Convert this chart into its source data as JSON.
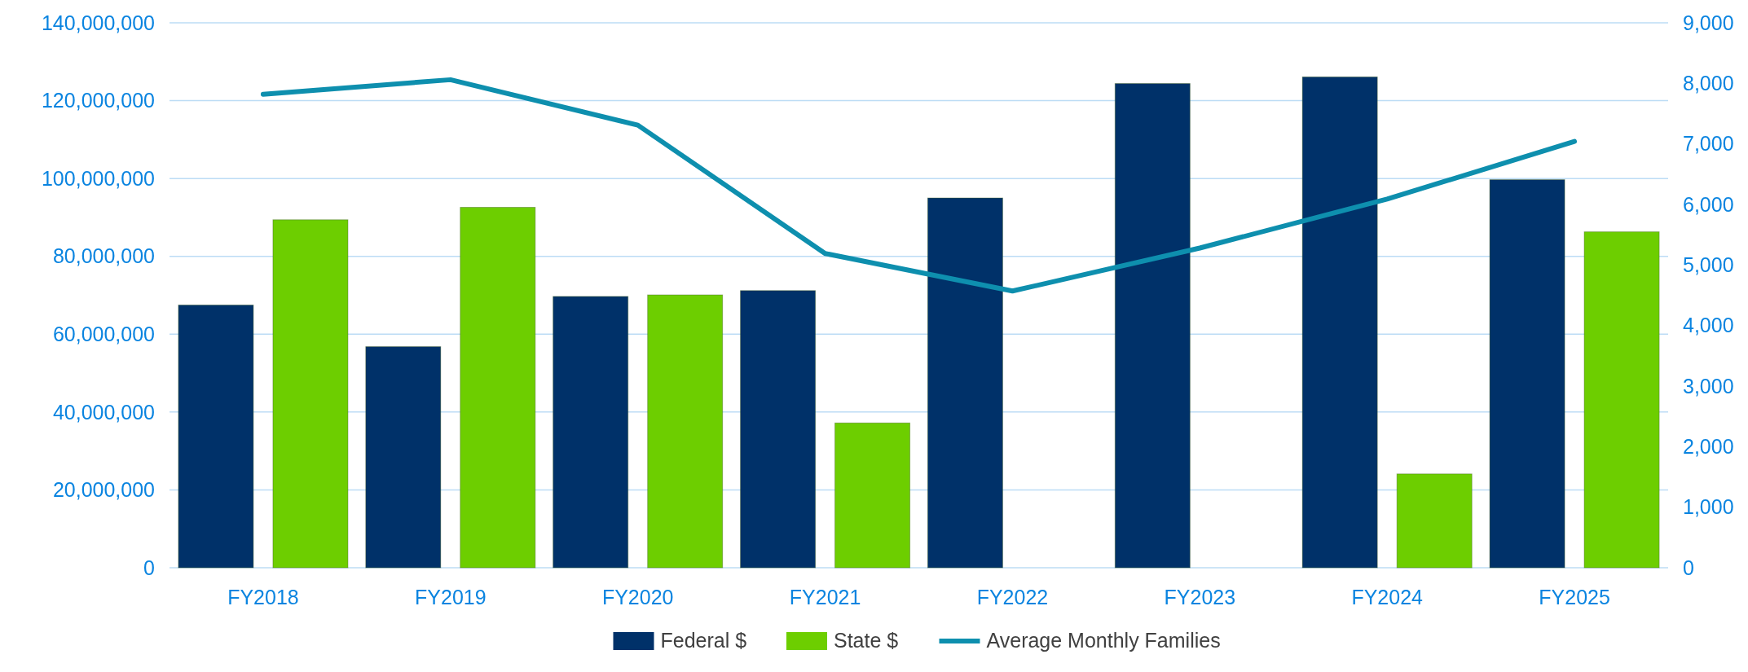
{
  "chart_data": {
    "type": "bar",
    "categories": [
      "FY2018",
      "FY2019",
      "FY2020",
      "FY2021",
      "FY2022",
      "FY2023",
      "FY2024",
      "FY2025"
    ],
    "series": [
      {
        "name": "Federal $",
        "color": "#003169",
        "values": [
          67500000,
          56800000,
          69700000,
          71200000,
          95000000,
          124400000,
          126100000,
          99700000
        ]
      },
      {
        "name": "State $",
        "color": "#6dce00",
        "values": [
          89400000,
          92600000,
          70100000,
          37200000,
          null,
          null,
          24100000,
          86300000
        ]
      },
      {
        "name": "Average Monthly Families",
        "type": "line",
        "axis": "y2",
        "color": "#0e8fae",
        "values": [
          7820,
          8060,
          7310,
          5190,
          4570,
          5280,
          6090,
          7040
        ]
      }
    ],
    "ylim": [
      0,
      140000000
    ],
    "yticks": [
      {
        "value": 0,
        "label": "0"
      },
      {
        "value": 20000000,
        "label": "20,000,000"
      },
      {
        "value": 40000000,
        "label": "40,000,000"
      },
      {
        "value": 60000000,
        "label": "60,000,000"
      },
      {
        "value": 80000000,
        "label": "80,000,000"
      },
      {
        "value": 100000000,
        "label": "100,000,000"
      },
      {
        "value": 120000000,
        "label": "120,000,000"
      },
      {
        "value": 140000000,
        "label": "140,000,000"
      }
    ],
    "y2lim": [
      0,
      9000
    ],
    "y2ticks": [
      {
        "value": 0,
        "label": "0"
      },
      {
        "value": 1000,
        "label": "1,000"
      },
      {
        "value": 2000,
        "label": "2,000"
      },
      {
        "value": 3000,
        "label": "3,000"
      },
      {
        "value": 4000,
        "label": "4,000"
      },
      {
        "value": 5000,
        "label": "5,000"
      },
      {
        "value": 6000,
        "label": "6,000"
      },
      {
        "value": 7000,
        "label": "7,000"
      },
      {
        "value": 8000,
        "label": "8,000"
      },
      {
        "value": 9000,
        "label": "9,000"
      }
    ],
    "grid": "y",
    "legend": "bottom",
    "marker": "none",
    "line_style": "solid"
  }
}
